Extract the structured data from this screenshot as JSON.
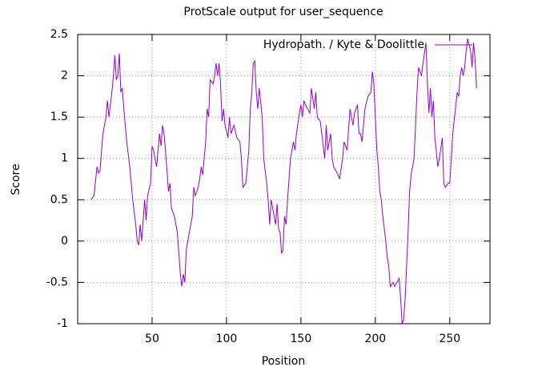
{
  "chart_data": {
    "type": "line",
    "title": "ProtScale output for user_sequence",
    "x_label": "Position",
    "y_label": "Score",
    "xlim": [
      0,
      277
    ],
    "ylim": [
      -1,
      2.5
    ],
    "xticks": [
      50,
      100,
      150,
      200,
      250
    ],
    "yticks": [
      -1,
      -0.5,
      0,
      0.5,
      1,
      1.5,
      2,
      2.5
    ],
    "grid": true,
    "legend": "top-right",
    "series": [
      {
        "name": "Hydropath. / Kyte & Doolittle",
        "color": "#9400d3",
        "x": [
          9,
          11,
          13,
          14,
          15,
          17,
          19,
          20,
          21,
          23,
          24,
          25,
          26,
          27,
          28,
          29,
          30,
          31,
          33,
          35,
          37,
          39,
          40,
          41,
          42,
          43,
          45,
          46,
          47,
          49,
          50,
          51,
          53,
          55,
          56,
          57,
          58,
          59,
          61,
          62,
          63,
          65,
          67,
          69,
          70,
          71,
          72,
          73,
          74,
          76,
          77,
          78,
          79,
          81,
          82,
          83,
          84,
          86,
          87,
          88,
          89,
          91,
          92,
          93,
          94,
          95,
          96,
          97,
          98,
          99,
          101,
          102,
          103,
          105,
          107,
          109,
          110,
          111,
          113,
          115,
          116,
          117,
          118,
          119,
          120,
          121,
          122,
          124,
          125,
          127,
          128,
          129,
          130,
          132,
          133,
          134,
          135,
          136,
          137,
          138,
          139,
          140,
          141,
          143,
          145,
          146,
          147,
          149,
          150,
          151,
          152,
          153,
          156,
          157,
          159,
          160,
          161,
          163,
          166,
          167,
          168,
          170,
          171,
          172,
          175,
          176,
          178,
          179,
          181,
          182,
          183,
          185,
          186,
          188,
          189,
          190,
          191,
          193,
          195,
          197,
          198,
          199,
          200,
          201,
          202,
          203,
          204,
          205,
          207,
          208,
          209,
          210,
          212,
          213,
          216,
          217,
          218,
          219,
          220,
          221,
          222,
          223,
          224,
          226,
          227,
          228,
          229,
          230,
          231,
          232,
          234,
          235,
          236,
          237,
          238,
          239,
          240,
          242,
          243,
          245,
          246,
          247,
          249,
          250,
          251,
          252,
          255,
          256,
          257,
          258,
          259,
          260,
          261,
          262,
          264,
          265,
          266,
          267,
          268
        ],
        "values": [
          0.5,
          0.55,
          0.9,
          0.82,
          0.85,
          1.3,
          1.5,
          1.7,
          1.5,
          1.8,
          2.0,
          2.25,
          1.95,
          2.0,
          2.27,
          1.8,
          1.85,
          1.6,
          1.2,
          0.9,
          0.5,
          0.2,
          0.0,
          -0.05,
          0.2,
          0.0,
          0.5,
          0.25,
          0.55,
          0.7,
          1.15,
          1.1,
          0.9,
          1.3,
          1.15,
          1.4,
          1.3,
          1.1,
          0.6,
          0.7,
          0.4,
          0.3,
          0.1,
          -0.4,
          -0.55,
          -0.4,
          -0.5,
          -0.1,
          0.0,
          0.2,
          0.3,
          0.65,
          0.55,
          0.65,
          0.75,
          0.9,
          0.8,
          1.2,
          1.6,
          1.5,
          1.95,
          1.9,
          2.0,
          2.15,
          2.0,
          2.15,
          1.9,
          1.45,
          1.6,
          1.4,
          1.25,
          1.5,
          1.3,
          1.4,
          1.25,
          1.2,
          1.0,
          0.65,
          0.7,
          1.1,
          1.6,
          1.8,
          2.15,
          2.18,
          1.8,
          1.6,
          1.85,
          1.5,
          1.0,
          0.7,
          0.5,
          0.2,
          0.5,
          0.3,
          0.2,
          0.45,
          0.15,
          0.1,
          -0.15,
          -0.1,
          0.3,
          0.2,
          0.5,
          1.0,
          1.2,
          1.1,
          1.3,
          1.55,
          1.65,
          1.5,
          1.7,
          1.65,
          1.55,
          1.85,
          1.6,
          1.8,
          1.5,
          1.45,
          1.0,
          1.4,
          1.1,
          1.3,
          1.0,
          0.9,
          0.8,
          0.75,
          1.0,
          1.2,
          1.1,
          1.35,
          1.6,
          1.4,
          1.55,
          1.65,
          1.3,
          1.3,
          1.2,
          1.6,
          1.75,
          1.8,
          2.05,
          1.9,
          1.5,
          1.1,
          0.9,
          0.6,
          0.5,
          0.3,
          0.0,
          -0.2,
          -0.3,
          -0.55,
          -0.5,
          -0.55,
          -0.45,
          -0.7,
          -1.0,
          -0.95,
          -0.7,
          -0.3,
          0.1,
          0.6,
          0.8,
          1.0,
          1.4,
          1.8,
          2.1,
          2.05,
          2.0,
          2.15,
          2.4,
          1.9,
          1.55,
          1.85,
          1.5,
          1.7,
          1.25,
          0.9,
          1.0,
          1.25,
          0.7,
          0.65,
          0.7,
          0.7,
          1.0,
          1.3,
          1.8,
          1.75,
          2.0,
          2.1,
          2.0,
          2.1,
          2.3,
          2.45,
          2.3,
          2.1,
          2.4,
          2.2,
          1.85
        ]
      }
    ]
  }
}
